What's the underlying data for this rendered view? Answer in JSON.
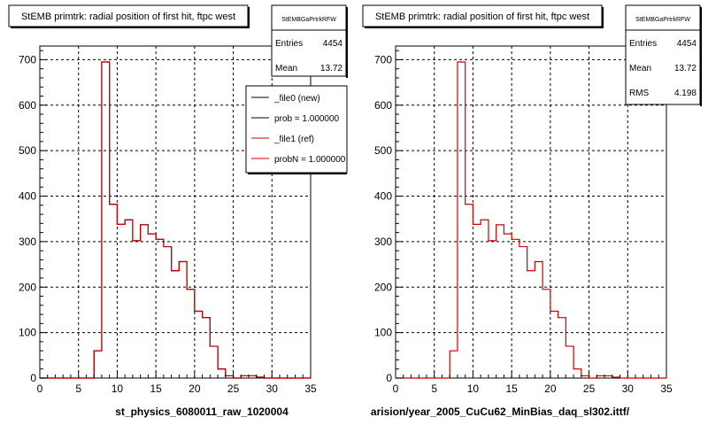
{
  "chart_data": [
    {
      "type": "bar",
      "title": "StEMB primtrk: radial position of first hit, ftpc west",
      "xlabel": "st_physics_6080011_raw_1020004",
      "xlim": [
        0,
        35
      ],
      "ylim": [
        0,
        730
      ],
      "xticks": [
        0,
        5,
        10,
        15,
        20,
        25,
        30,
        35
      ],
      "yticks": [
        0,
        100,
        200,
        300,
        400,
        500,
        600,
        700
      ],
      "grid": true,
      "bin_width": 1,
      "bin_edges_start": 0,
      "series": [
        {
          "name": "_file0 (new)",
          "color": "#000000",
          "values": [
            0,
            0,
            0,
            0,
            0,
            0,
            0,
            60,
            695,
            382,
            338,
            348,
            302,
            337,
            317,
            305,
            289,
            236,
            256,
            195,
            147,
            133,
            70,
            20,
            5,
            0,
            5,
            5,
            2,
            0,
            0,
            0,
            0,
            0,
            0
          ]
        },
        {
          "name": "_file1 (ref)",
          "color": "#cc0000",
          "values": [
            0,
            0,
            0,
            0,
            0,
            0,
            0,
            60,
            695,
            382,
            338,
            348,
            302,
            337,
            317,
            305,
            289,
            236,
            256,
            195,
            147,
            133,
            70,
            20,
            5,
            0,
            5,
            5,
            2,
            0,
            0,
            0,
            0,
            0,
            0
          ]
        }
      ],
      "stats": {
        "name": "StEMBGaPrtrkRFW",
        "entries_label": "Entries",
        "entries": "4454",
        "mean_label": "Mean",
        "mean": "13.72"
      },
      "legend": {
        "placement": "top-right",
        "entries": [
          {
            "label": "_file0 (new)",
            "color": "#000000"
          },
          {
            "label": "prob = 1.000000",
            "color": "#000000"
          },
          {
            "label": "_file1 (ref)",
            "color": "#cc0000"
          },
          {
            "label": "probN = 1.000000",
            "color": "#cc0000"
          }
        ]
      }
    },
    {
      "type": "bar",
      "title": "StEMB primtrk: radial position of first hit, ftpc west",
      "xlabel": "arision/year_2005_CuCu62_MinBias_daq_sl302.ittf/",
      "xlim": [
        0,
        35
      ],
      "ylim": [
        0,
        730
      ],
      "xticks": [
        0,
        5,
        10,
        15,
        20,
        25,
        30,
        35
      ],
      "yticks": [
        0,
        100,
        200,
        300,
        400,
        500,
        600,
        700
      ],
      "grid": true,
      "bin_width": 1,
      "bin_edges_start": 0,
      "series": [
        {
          "name": "_file1 (ref)",
          "color": "#cc0000",
          "values": [
            0,
            0,
            0,
            0,
            0,
            0,
            0,
            60,
            695,
            382,
            338,
            348,
            302,
            337,
            317,
            305,
            289,
            236,
            256,
            195,
            147,
            133,
            70,
            20,
            5,
            0,
            5,
            5,
            2,
            0,
            0,
            0,
            0,
            0,
            0
          ]
        }
      ],
      "stats": {
        "name": "StEMBGaPrtrkRFW",
        "entries_label": "Entries",
        "entries": "4454",
        "mean_label": "Mean",
        "mean": "13.72",
        "rms_label": "RMS",
        "rms": "4.198"
      }
    }
  ]
}
